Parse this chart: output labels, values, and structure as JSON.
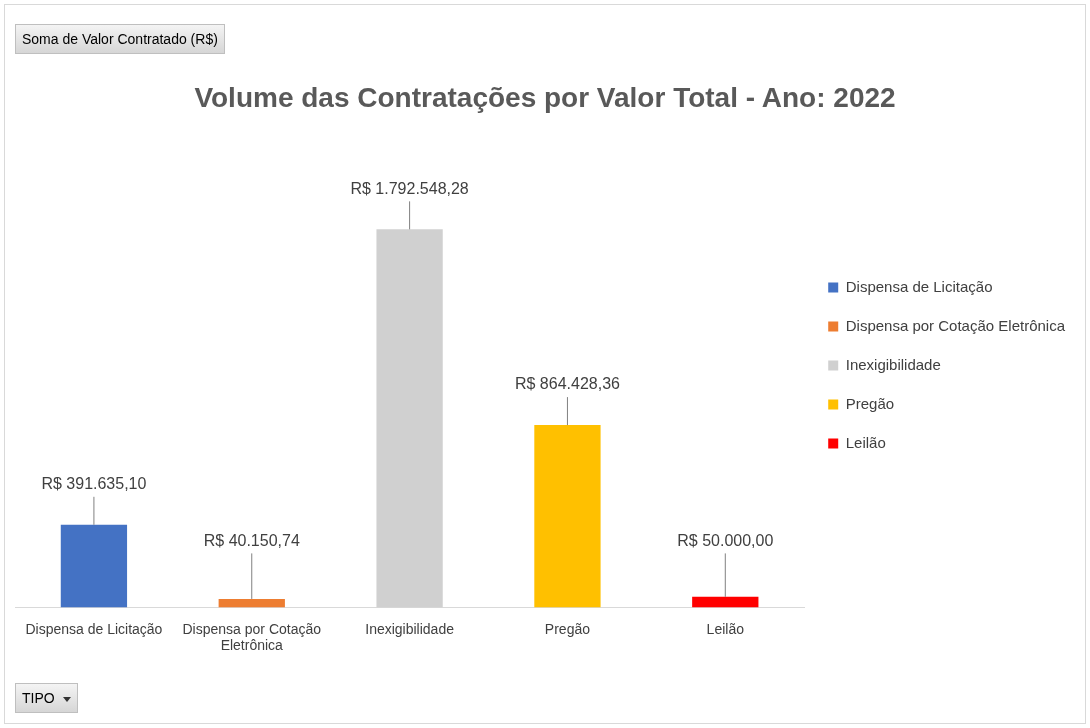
{
  "chart_data": {
    "type": "bar",
    "title": "Volume das Contratações por Valor Total - Ano: 2022",
    "categories": [
      "Dispensa de Licitação",
      "Dispensa por Cotação Eletrônica",
      "Inexigibilidade",
      "Pregão",
      "Leilão"
    ],
    "series": [
      {
        "name": "Dispensa de Licitação",
        "color": "#4472c4",
        "values": [
          391635.1,
          null,
          null,
          null,
          null
        ],
        "value_labels": [
          "R$ 391.635,10",
          null,
          null,
          null,
          null
        ]
      },
      {
        "name": "Dispensa por Cotação Eletrônica",
        "color": "#ed7d31",
        "values": [
          null,
          40150.74,
          null,
          null,
          null
        ],
        "value_labels": [
          null,
          "R$ 40.150,74",
          null,
          null,
          null
        ]
      },
      {
        "name": "Inexigibilidade",
        "color": "#d0d0d0",
        "values": [
          null,
          null,
          1792548.28,
          null,
          null
        ],
        "value_labels": [
          null,
          null,
          "R$ 1.792.548,28",
          null,
          null
        ]
      },
      {
        "name": "Pregão",
        "color": "#ffc000",
        "values": [
          null,
          null,
          null,
          864428.36,
          null
        ],
        "value_labels": [
          null,
          null,
          null,
          "R$ 864.428,36",
          null
        ]
      },
      {
        "name": "Leilão",
        "color": "#ff0000",
        "values": [
          null,
          null,
          null,
          null,
          50000.0
        ],
        "value_labels": [
          null,
          null,
          null,
          null,
          "R$ 50.000,00"
        ]
      }
    ],
    "legend": "right",
    "annotations": [
      "Soma de Valor Contratado (R$)",
      "TIPO"
    ]
  }
}
